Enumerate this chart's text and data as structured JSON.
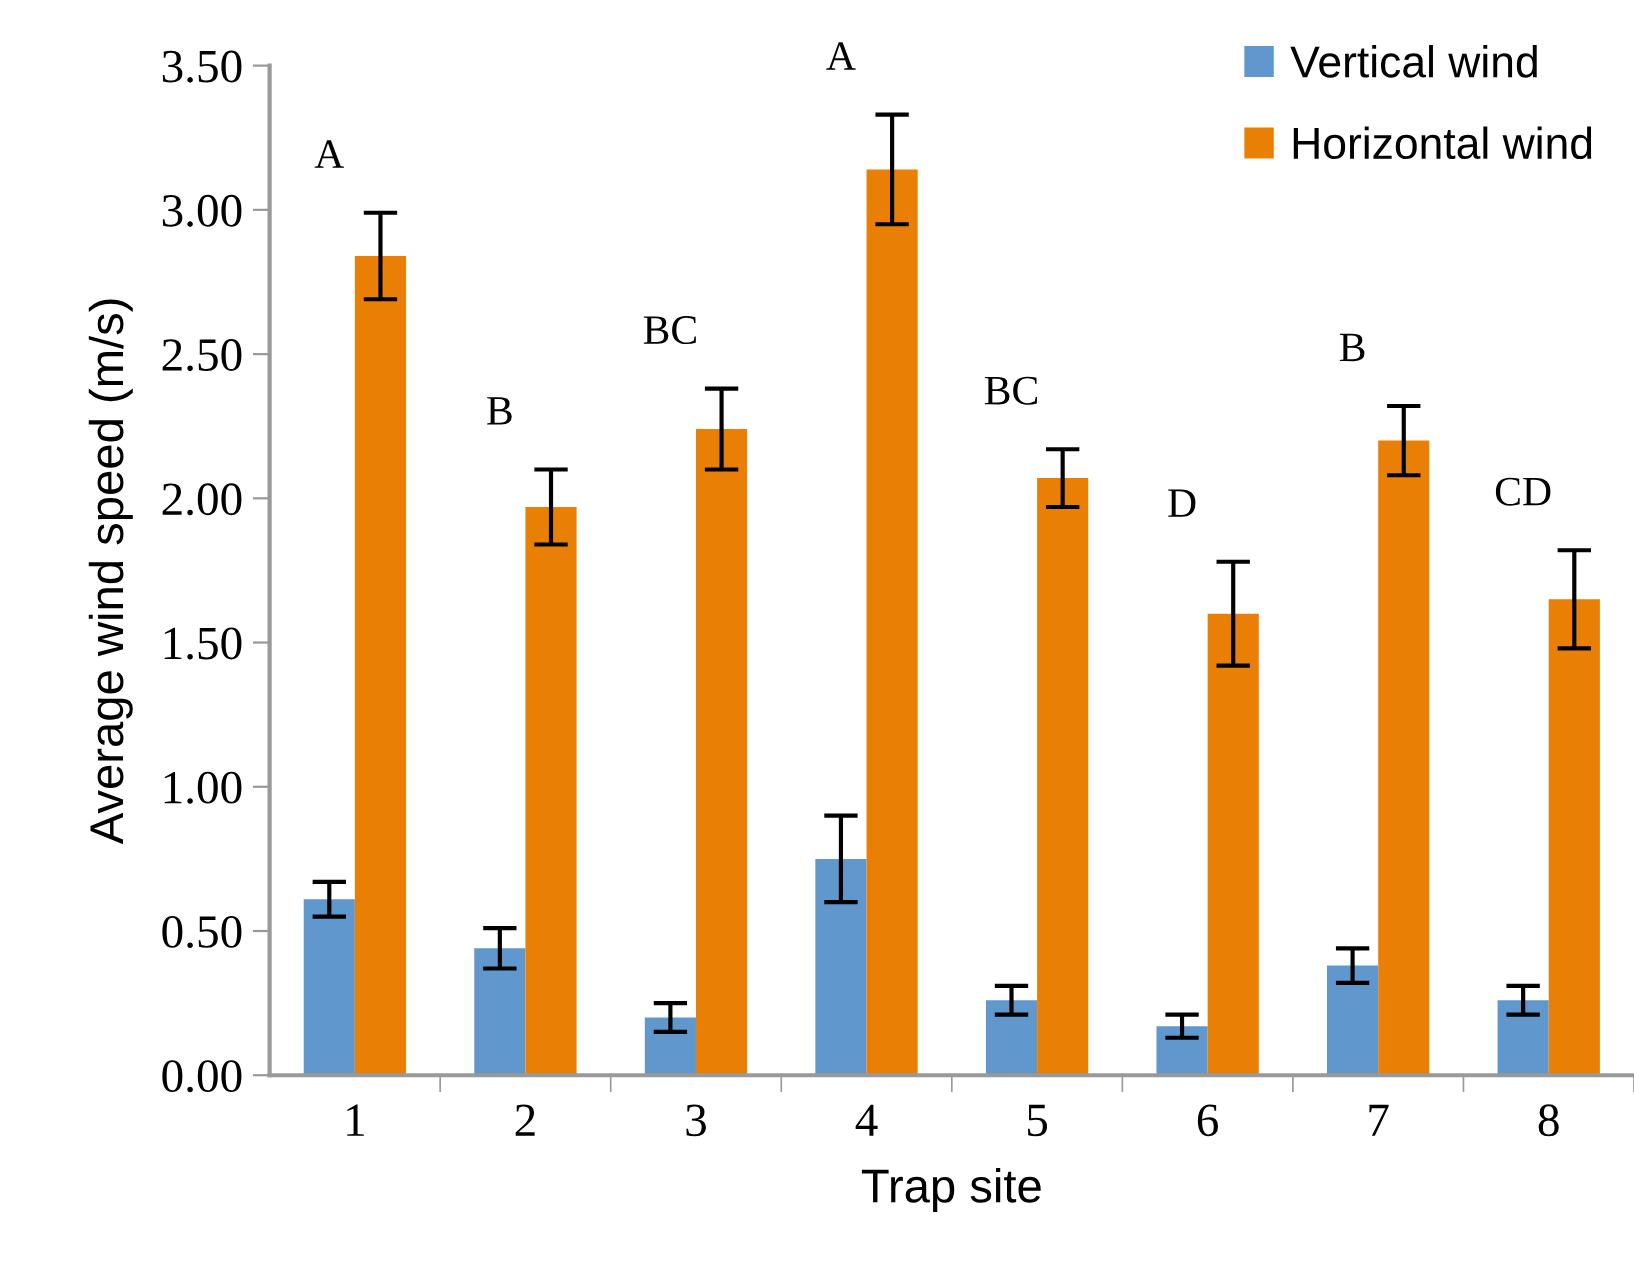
{
  "chart_data": {
    "type": "bar",
    "xlabel": "Trap site",
    "ylabel": "Average wind speed (m/s)",
    "categories": [
      "1",
      "2",
      "3",
      "4",
      "5",
      "6",
      "7",
      "8"
    ],
    "series": [
      {
        "name": "Vertical wind",
        "color": "#6097cc",
        "values": [
          0.61,
          0.44,
          0.2,
          0.75,
          0.26,
          0.17,
          0.38,
          0.26
        ],
        "errors": [
          0.06,
          0.07,
          0.05,
          0.15,
          0.05,
          0.04,
          0.06,
          0.05
        ]
      },
      {
        "name": "Horizontal wind",
        "color": "#e98005",
        "values": [
          2.84,
          1.97,
          2.24,
          3.14,
          2.07,
          1.6,
          2.2,
          1.65
        ],
        "errors": [
          0.15,
          0.13,
          0.14,
          0.19,
          0.1,
          0.18,
          0.12,
          0.17
        ]
      }
    ],
    "annotations": [
      "A",
      "B",
      "BC",
      "A",
      "BC",
      "D",
      "B",
      "CD"
    ],
    "ylim": [
      0,
      3.5
    ],
    "yticks": [
      {
        "value": 0,
        "label": "0.00"
      },
      {
        "value": 0.5,
        "label": "0.50"
      },
      {
        "value": 1,
        "label": "1.00"
      },
      {
        "value": 1.5,
        "label": "1.50"
      },
      {
        "value": 2,
        "label": "2.00"
      },
      {
        "value": 2.5,
        "label": "2.50"
      },
      {
        "value": 3,
        "label": "3.00"
      },
      {
        "value": 3.5,
        "label": "3.50"
      }
    ],
    "grid": false,
    "legend": "top right"
  }
}
